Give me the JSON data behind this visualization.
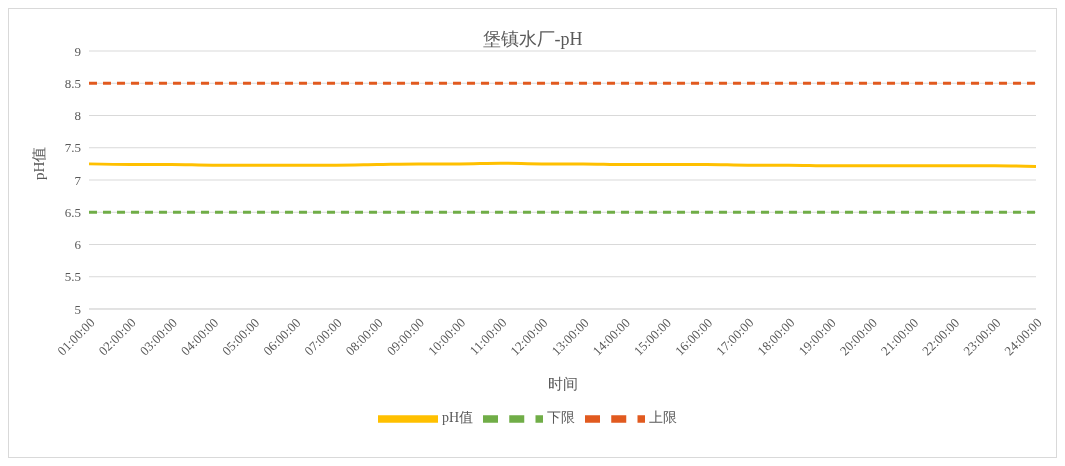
{
  "chart_data": {
    "type": "line",
    "title": "堡镇水厂-pH",
    "xlabel": "时间",
    "ylabel": "pH值",
    "categories": [
      "01:00:00",
      "02:00:00",
      "03:00:00",
      "04:00:00",
      "05:00:00",
      "06:00:00",
      "07:00:00",
      "08:00:00",
      "09:00:00",
      "10:00:00",
      "11:00:00",
      "12:00:00",
      "13:00:00",
      "14:00:00",
      "15:00:00",
      "16:00:00",
      "17:00:00",
      "18:00:00",
      "19:00:00",
      "20:00:00",
      "21:00:00",
      "22:00:00",
      "23:00:00",
      "24:00:00"
    ],
    "series": [
      {
        "name": "pH值",
        "color": "#ffc000",
        "line_style": "solid",
        "values": [
          7.25,
          7.24,
          7.24,
          7.23,
          7.23,
          7.23,
          7.23,
          7.24,
          7.25,
          7.25,
          7.26,
          7.25,
          7.25,
          7.24,
          7.24,
          7.24,
          7.23,
          7.23,
          7.22,
          7.22,
          7.22,
          7.22,
          7.22,
          7.21
        ]
      },
      {
        "name": "下限",
        "color": "#70ad47",
        "line_style": "dashed",
        "values": [
          6.5,
          6.5,
          6.5,
          6.5,
          6.5,
          6.5,
          6.5,
          6.5,
          6.5,
          6.5,
          6.5,
          6.5,
          6.5,
          6.5,
          6.5,
          6.5,
          6.5,
          6.5,
          6.5,
          6.5,
          6.5,
          6.5,
          6.5,
          6.5
        ]
      },
      {
        "name": "上限",
        "color": "#e15a1f",
        "line_style": "dashed",
        "values": [
          8.5,
          8.5,
          8.5,
          8.5,
          8.5,
          8.5,
          8.5,
          8.5,
          8.5,
          8.5,
          8.5,
          8.5,
          8.5,
          8.5,
          8.5,
          8.5,
          8.5,
          8.5,
          8.5,
          8.5,
          8.5,
          8.5,
          8.5,
          8.5
        ]
      }
    ],
    "ylim": [
      5,
      9
    ],
    "yticks": [
      5,
      5.5,
      6,
      6.5,
      7,
      7.5,
      8,
      8.5,
      9
    ],
    "grid": "y",
    "legend": "bottom",
    "marker": "none"
  }
}
